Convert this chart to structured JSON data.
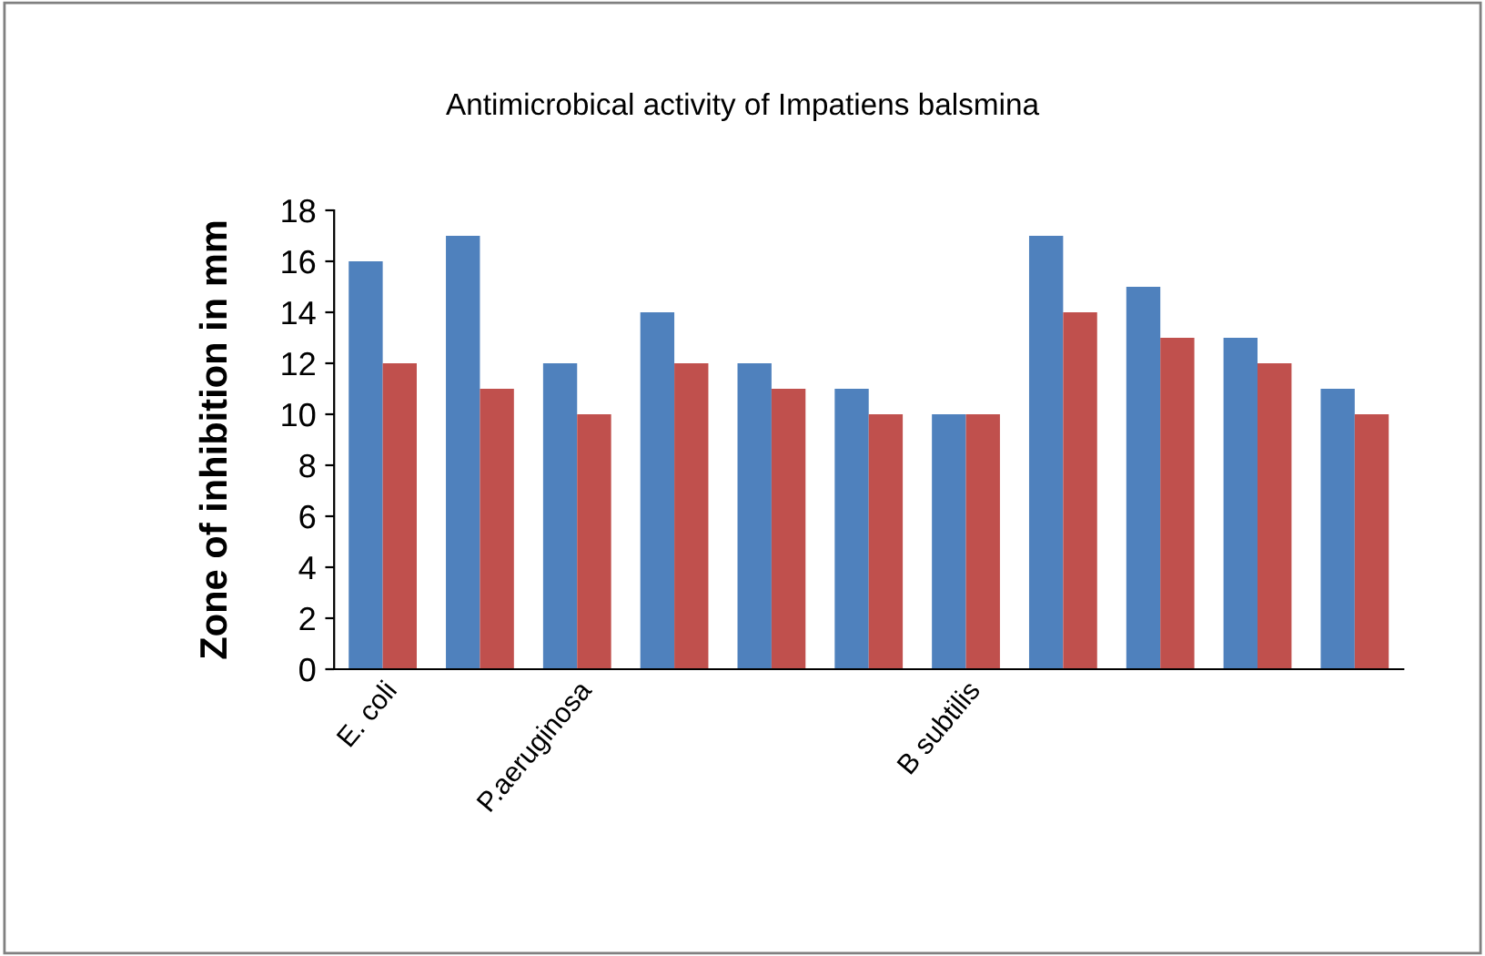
{
  "chart_data": {
    "type": "bar",
    "title": "Antimicrobical activity of Impatiens balsmina",
    "ylabel": "Zone of inhibition in mm",
    "categories": [
      "E. coli",
      null,
      "P.aeruginosa",
      null,
      null,
      null,
      "B subtilis",
      null,
      null,
      null,
      null
    ],
    "series": [
      {
        "color": "#4f81bd",
        "values": [
          16,
          17,
          12,
          14,
          12,
          11,
          10,
          17,
          15,
          13,
          11
        ]
      },
      {
        "color": "#c0504d",
        "values": [
          12,
          11,
          10,
          12,
          11,
          10,
          10,
          14,
          13,
          12,
          10
        ]
      }
    ],
    "ylim": [
      0,
      18
    ],
    "yticks": [
      0,
      2,
      4,
      6,
      8,
      10,
      12,
      14,
      16,
      18
    ],
    "grid": false,
    "legend": false
  }
}
